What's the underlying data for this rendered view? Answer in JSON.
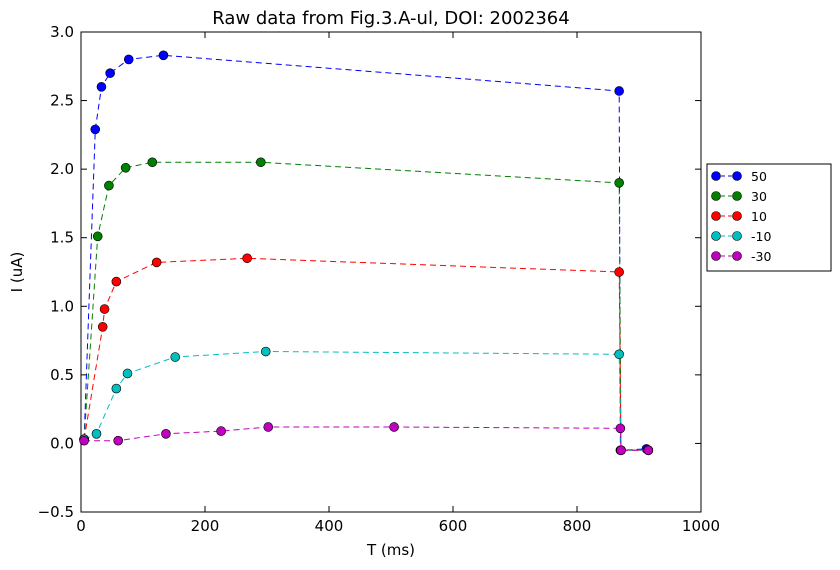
{
  "chart_data": {
    "type": "line",
    "title": "Raw data from Fig.3.A-ul, DOI: 2002364",
    "xlabel": "T (ms)",
    "ylabel": "I (uA)",
    "xlim": [
      0,
      1000
    ],
    "ylim": [
      -0.5,
      3.0
    ],
    "xticks": [
      "0",
      "200",
      "400",
      "600",
      "800",
      "1000"
    ],
    "yticks": [
      "−0.5",
      "0.0",
      "0.5",
      "1.0",
      "1.5",
      "2.0",
      "2.5",
      "3.0"
    ],
    "legend_position": "outside-right",
    "grid": false,
    "series": [
      {
        "name": "50",
        "color": "#0000ff",
        "x": [
          5,
          23,
          33,
          47,
          77,
          133,
          868,
          870,
          912,
          915
        ],
        "y": [
          0.03,
          2.29,
          2.6,
          2.7,
          2.8,
          2.83,
          2.57,
          -0.05,
          -0.04,
          -0.05
        ]
      },
      {
        "name": "30",
        "color": "#008000",
        "x": [
          5,
          27,
          45,
          72,
          115,
          290,
          868,
          871,
          915
        ],
        "y": [
          0.03,
          1.51,
          1.88,
          2.01,
          2.05,
          2.05,
          1.9,
          -0.05,
          -0.05
        ]
      },
      {
        "name": "10",
        "color": "#ff0000",
        "x": [
          5,
          35,
          38,
          57,
          122,
          268,
          868,
          871,
          915
        ],
        "y": [
          0.03,
          0.85,
          0.98,
          1.18,
          1.32,
          1.35,
          1.25,
          -0.05,
          -0.05
        ]
      },
      {
        "name": "-10",
        "color": "#00bfbf",
        "x": [
          5,
          25,
          57,
          75,
          152,
          298,
          868,
          871,
          915
        ],
        "y": [
          0.03,
          0.07,
          0.4,
          0.51,
          0.63,
          0.67,
          0.65,
          -0.05,
          -0.05
        ]
      },
      {
        "name": "-30",
        "color": "#bf00bf",
        "x": [
          5,
          60,
          137,
          226,
          302,
          505,
          870,
          871,
          915
        ],
        "y": [
          0.02,
          0.02,
          0.07,
          0.09,
          0.12,
          0.12,
          0.11,
          -0.05,
          -0.05
        ]
      }
    ]
  }
}
